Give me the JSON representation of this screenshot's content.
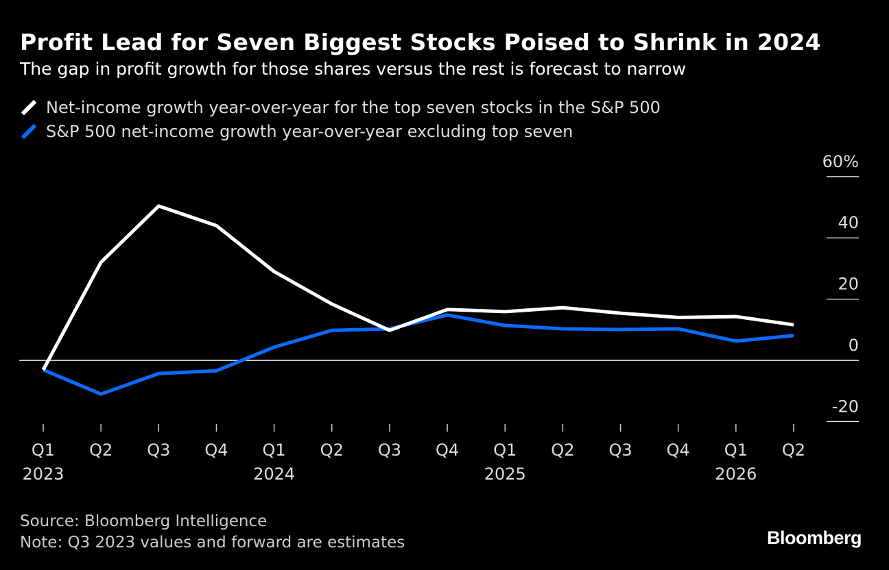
{
  "title": "Profit Lead for Seven Biggest Stocks Poised to Shrink in 2024",
  "subtitle": "The gap in profit growth for those shares versus the rest is forecast to narrow",
  "source": "Source: Bloomberg Intelligence",
  "note": "Note: Q3 2023 values and forward are estimates",
  "logo": "Bloomberg",
  "chart_data": {
    "type": "line",
    "categories": [
      "Q1",
      "Q2",
      "Q3",
      "Q4",
      "Q1",
      "Q2",
      "Q3",
      "Q4",
      "Q1",
      "Q2",
      "Q3",
      "Q4",
      "Q1",
      "Q2"
    ],
    "year_labels": [
      {
        "index": 0,
        "label": "2023"
      },
      {
        "index": 4,
        "label": "2024"
      },
      {
        "index": 8,
        "label": "2025"
      },
      {
        "index": 12,
        "label": "2026"
      }
    ],
    "y_ticks": [
      {
        "value": 60,
        "label": "60%"
      },
      {
        "value": 40,
        "label": "40"
      },
      {
        "value": 20,
        "label": "20"
      },
      {
        "value": 0,
        "label": "0"
      },
      {
        "value": -20,
        "label": "-20"
      }
    ],
    "ylim": [
      -20,
      60
    ],
    "series": [
      {
        "name": "Net-income growth year-over-year for the top seven stocks in the S&P 500",
        "color": "#ffffff",
        "values": [
          -3.1,
          32,
          50.4,
          44,
          29,
          18.4,
          9.8,
          16.6,
          15.9,
          17.2,
          15.4,
          14,
          14.3,
          11.6
        ]
      },
      {
        "name": "S&P 500 net-income growth year-over-year excluding top seven",
        "color": "#0a6cff",
        "values": [
          -3.1,
          -11,
          -4.3,
          -3.4,
          4.3,
          9.8,
          10.3,
          14.8,
          11.4,
          10.3,
          10.1,
          10.3,
          6.3,
          8.1
        ]
      }
    ]
  }
}
